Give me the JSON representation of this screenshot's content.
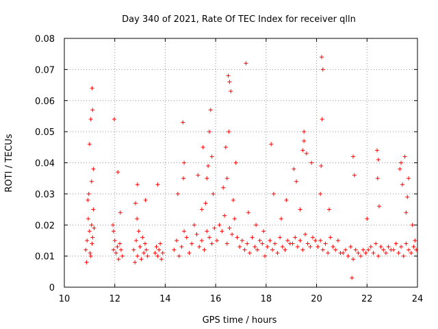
{
  "chart_data": {
    "type": "scatter",
    "title": "Day 340 of 2021, Rate Of TEC Index for receiver qlln",
    "xlabel": "GPS time / hours",
    "ylabel": "ROTI / TECUs",
    "xlim": [
      10,
      24
    ],
    "ylim": [
      0,
      0.08
    ],
    "grid": true,
    "marker": "+",
    "color": "#ff0000",
    "x_ticks": [
      "10",
      "12",
      "14",
      "16",
      "18",
      "20",
      "22",
      "24"
    ],
    "y_ticks": [
      "0",
      "0.01",
      "0.02",
      "0.03",
      "0.04",
      "0.05",
      "0.06",
      "0.07",
      "0.08"
    ],
    "x_tick_values": [
      10,
      12,
      14,
      16,
      18,
      20,
      22,
      24
    ],
    "y_tick_values": [
      0,
      0.01,
      0.02,
      0.03,
      0.04,
      0.05,
      0.06,
      0.07,
      0.08
    ],
    "series": [
      {
        "name": "ROTI",
        "x": [
          10.85,
          10.9,
          10.95,
          11.0,
          11.05,
          11.1,
          11.15,
          10.88,
          10.97,
          11.08,
          11.12,
          11.02,
          10.93,
          11.18,
          11.1,
          11.05,
          11.0,
          11.12,
          11.15,
          11.08,
          11.95,
          12.0,
          12.05,
          12.1,
          12.15,
          12.2,
          12.25,
          12.3,
          11.98,
          12.12,
          12.22,
          11.93,
          11.95,
          12.75,
          12.8,
          12.85,
          12.9,
          12.95,
          13.0,
          13.05,
          13.1,
          13.15,
          13.2,
          13.25,
          13.3,
          12.82,
          12.9,
          13.22,
          12.88,
          13.6,
          13.65,
          13.7,
          13.75,
          13.8,
          13.85,
          13.9,
          13.7,
          14.35,
          14.45,
          14.55,
          14.65,
          14.75,
          14.85,
          14.95,
          15.05,
          15.15,
          15.25,
          15.35,
          15.45,
          15.55,
          15.65,
          15.75,
          15.85,
          15.95,
          14.7,
          14.75,
          14.72,
          15.5,
          15.3,
          15.45,
          14.5,
          15.75,
          15.8,
          15.85,
          15.9,
          15.7,
          15.6,
          15.65,
          16.05,
          16.15,
          16.25,
          16.35,
          16.45,
          16.55,
          16.65,
          16.75,
          16.85,
          16.95,
          16.5,
          16.55,
          16.6,
          16.52,
          16.45,
          16.7,
          16.8,
          16.4,
          16.3,
          17.2,
          17.05,
          17.15,
          17.25,
          17.35,
          17.45,
          17.55,
          17.65,
          17.75,
          17.85,
          17.95,
          17.3,
          17.6,
          17.9,
          18.05,
          18.15,
          18.25,
          18.35,
          18.45,
          18.55,
          18.65,
          18.75,
          18.85,
          18.95,
          18.2,
          18.3,
          18.6,
          18.8,
          19.05,
          19.15,
          19.25,
          19.35,
          19.45,
          19.55,
          19.65,
          19.75,
          19.85,
          19.95,
          19.1,
          19.2,
          19.35,
          19.5,
          19.6,
          19.8,
          19.5,
          19.45,
          20.05,
          20.15,
          20.25,
          20.35,
          20.45,
          20.55,
          20.65,
          20.75,
          20.85,
          20.95,
          20.2,
          20.25,
          20.22,
          20.18,
          20.15,
          20.5,
          21.05,
          21.15,
          21.25,
          21.35,
          21.45,
          21.55,
          21.65,
          21.75,
          21.85,
          21.95,
          21.45,
          21.5,
          21.4,
          22.05,
          22.15,
          22.25,
          22.35,
          22.45,
          22.55,
          22.65,
          22.75,
          22.85,
          22.95,
          22.4,
          22.45,
          22.42,
          22.48,
          22.0,
          23.05,
          23.15,
          23.25,
          23.35,
          23.45,
          23.55,
          23.65,
          23.75,
          23.85,
          23.95,
          23.3,
          23.35,
          23.4,
          23.5,
          23.6,
          23.65,
          23.55,
          23.8,
          23.9
        ],
        "y": [
          0.012,
          0.015,
          0.022,
          0.018,
          0.01,
          0.014,
          0.025,
          0.008,
          0.03,
          0.02,
          0.016,
          0.011,
          0.028,
          0.019,
          0.064,
          0.054,
          0.046,
          0.057,
          0.038,
          0.034,
          0.012,
          0.015,
          0.011,
          0.013,
          0.009,
          0.014,
          0.012,
          0.01,
          0.054,
          0.037,
          0.024,
          0.02,
          0.018,
          0.012,
          0.008,
          0.015,
          0.01,
          0.018,
          0.013,
          0.009,
          0.016,
          0.011,
          0.014,
          0.012,
          0.01,
          0.027,
          0.033,
          0.028,
          0.022,
          0.011,
          0.013,
          0.01,
          0.012,
          0.014,
          0.009,
          0.011,
          0.033,
          0.012,
          0.015,
          0.01,
          0.013,
          0.018,
          0.016,
          0.011,
          0.014,
          0.02,
          0.017,
          0.013,
          0.015,
          0.012,
          0.018,
          0.016,
          0.014,
          0.019,
          0.053,
          0.04,
          0.035,
          0.045,
          0.036,
          0.025,
          0.03,
          0.05,
          0.057,
          0.042,
          0.03,
          0.039,
          0.027,
          0.035,
          0.015,
          0.02,
          0.018,
          0.023,
          0.014,
          0.019,
          0.017,
          0.022,
          0.016,
          0.013,
          0.068,
          0.066,
          0.063,
          0.05,
          0.035,
          0.028,
          0.04,
          0.045,
          0.032,
          0.072,
          0.015,
          0.012,
          0.014,
          0.011,
          0.016,
          0.013,
          0.012,
          0.015,
          0.014,
          0.01,
          0.024,
          0.02,
          0.018,
          0.013,
          0.015,
          0.012,
          0.014,
          0.011,
          0.016,
          0.013,
          0.012,
          0.015,
          0.014,
          0.046,
          0.03,
          0.022,
          0.028,
          0.014,
          0.016,
          0.013,
          0.015,
          0.012,
          0.017,
          0.014,
          0.013,
          0.016,
          0.015,
          0.038,
          0.034,
          0.025,
          0.05,
          0.043,
          0.04,
          0.047,
          0.044,
          0.013,
          0.015,
          0.012,
          0.014,
          0.011,
          0.016,
          0.013,
          0.012,
          0.015,
          0.011,
          0.074,
          0.07,
          0.054,
          0.039,
          0.03,
          0.025,
          0.011,
          0.012,
          0.01,
          0.013,
          0.009,
          0.012,
          0.011,
          0.01,
          0.012,
          0.011,
          0.042,
          0.036,
          0.003,
          0.012,
          0.013,
          0.011,
          0.014,
          0.01,
          0.013,
          0.012,
          0.011,
          0.013,
          0.012,
          0.044,
          0.041,
          0.035,
          0.026,
          0.022,
          0.012,
          0.014,
          0.011,
          0.013,
          0.01,
          0.014,
          0.012,
          0.011,
          0.013,
          0.012,
          0.038,
          0.04,
          0.033,
          0.042,
          0.029,
          0.035,
          0.024,
          0.02,
          0.015
        ]
      }
    ]
  }
}
